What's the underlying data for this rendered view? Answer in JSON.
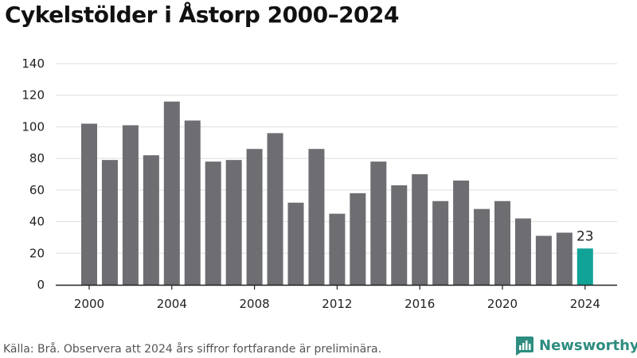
{
  "chart_data": {
    "type": "bar",
    "title": "Cykelstölder i Åstorp 2000–2024",
    "x": [
      2000,
      2001,
      2002,
      2003,
      2004,
      2005,
      2006,
      2007,
      2008,
      2009,
      2010,
      2011,
      2012,
      2013,
      2014,
      2015,
      2016,
      2017,
      2018,
      2019,
      2020,
      2021,
      2022,
      2023,
      2024
    ],
    "values": [
      102,
      79,
      101,
      82,
      116,
      104,
      78,
      79,
      86,
      96,
      52,
      86,
      45,
      58,
      78,
      63,
      70,
      53,
      66,
      48,
      53,
      42,
      31,
      33,
      23
    ],
    "x_tick_labels": [
      "2000",
      "2004",
      "2008",
      "2012",
      "2016",
      "2020",
      "2024"
    ],
    "y_tick_labels": [
      "0",
      "20",
      "40",
      "60",
      "80",
      "100",
      "120",
      "140"
    ],
    "ylim": [
      0,
      140
    ],
    "grid": true,
    "highlight": {
      "index": 24,
      "label": "23"
    },
    "colors": {
      "bar": "#6e6d72",
      "highlight": "#12a397",
      "grid": "#dddddd",
      "axis": "#222222"
    }
  },
  "footer": {
    "source": "Källa: Brå. Observera att 2024 års siffror fortfarande är preliminära.",
    "brand": "Newsworthy",
    "brand_color": "#2e8c80",
    "brand_icon": "newsworthy-logo-icon"
  }
}
